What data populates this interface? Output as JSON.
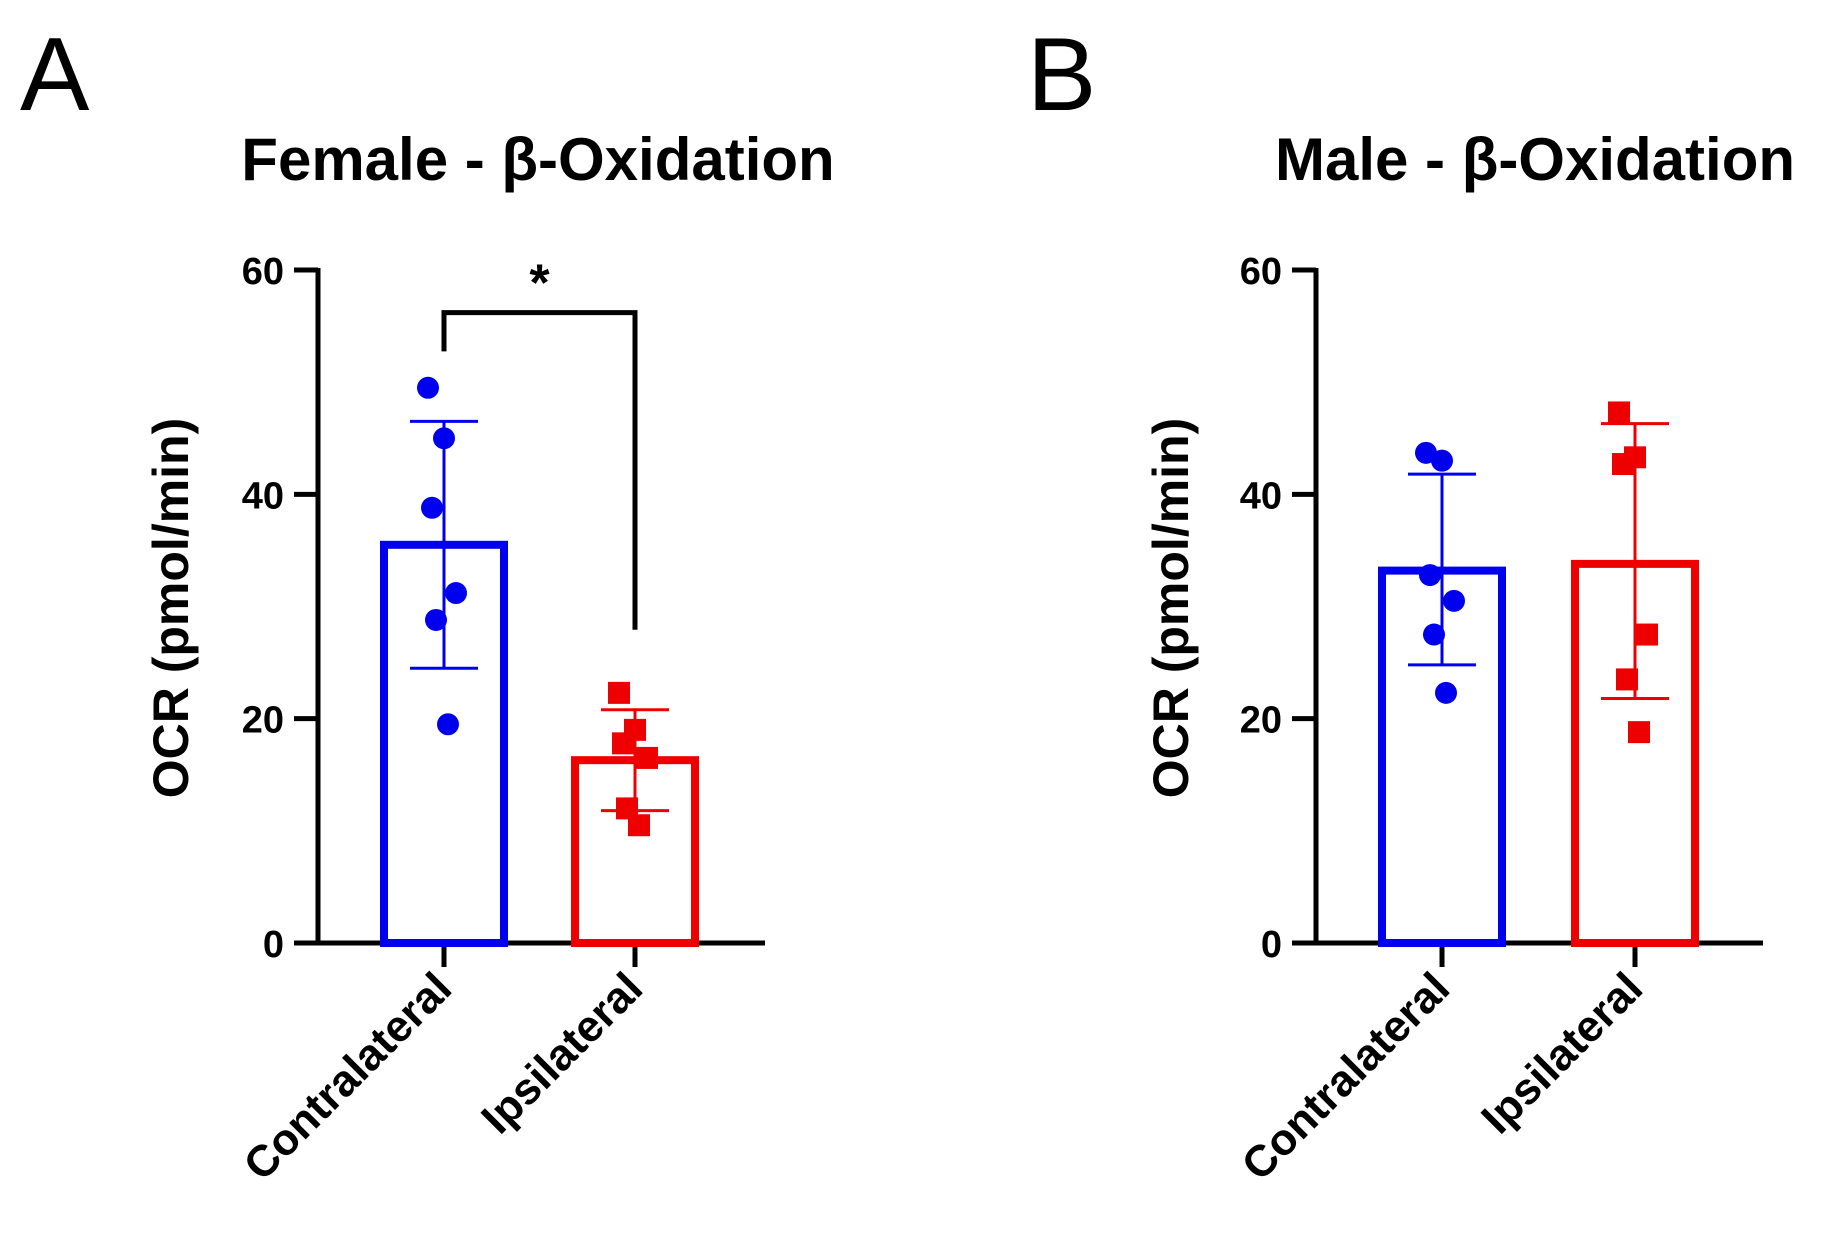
{
  "chart_data": [
    {
      "type": "bar",
      "panel_label": "A",
      "title": "Female - β-Oxidation",
      "xlabel": "",
      "ylabel": "OCR (pmol/min)",
      "ylim": [
        0,
        60
      ],
      "yticks": [
        0,
        20,
        40,
        60
      ],
      "yticklabels": [
        "0",
        "20",
        "40",
        "60"
      ],
      "grid": false,
      "categories": [
        "Contralateral",
        "Ipsilateral"
      ],
      "colors": [
        "#0000ee",
        "#ee0000"
      ],
      "markers": [
        "circle",
        "square"
      ],
      "series": [
        {
          "name": "Contralateral",
          "mean": 35.5,
          "error_low": 24.5,
          "error_high": 46.5,
          "points": [
            49.5,
            45.0,
            38.8,
            31.2,
            28.8,
            19.5
          ]
        },
        {
          "name": "Ipsilateral",
          "mean": 16.3,
          "error_low": 11.8,
          "error_high": 20.8,
          "points": [
            22.3,
            19.0,
            17.8,
            16.5,
            12.0,
            10.5
          ]
        }
      ],
      "significance": {
        "between": [
          "Contralateral",
          "Ipsilateral"
        ],
        "label": "*",
        "bracket_y": 56.2
      }
    },
    {
      "type": "bar",
      "panel_label": "B",
      "title": "Male - β-Oxidation",
      "xlabel": "",
      "ylabel": "OCR (pmol/min)",
      "ylim": [
        0,
        60
      ],
      "yticks": [
        0,
        20,
        40,
        60
      ],
      "yticklabels": [
        "0",
        "20",
        "40",
        "60"
      ],
      "grid": false,
      "categories": [
        "Contralateral",
        "Ipsilateral"
      ],
      "colors": [
        "#0000ee",
        "#ee0000"
      ],
      "markers": [
        "circle",
        "square"
      ],
      "series": [
        {
          "name": "Contralateral",
          "mean": 33.2,
          "error_low": 24.8,
          "error_high": 41.8,
          "points": [
            43.7,
            43.0,
            32.8,
            30.5,
            27.5,
            22.3
          ]
        },
        {
          "name": "Ipsilateral",
          "mean": 33.8,
          "error_low": 21.8,
          "error_high": 46.3,
          "points": [
            47.3,
            43.3,
            42.7,
            27.5,
            23.5,
            18.8
          ]
        }
      ],
      "significance": null
    }
  ]
}
